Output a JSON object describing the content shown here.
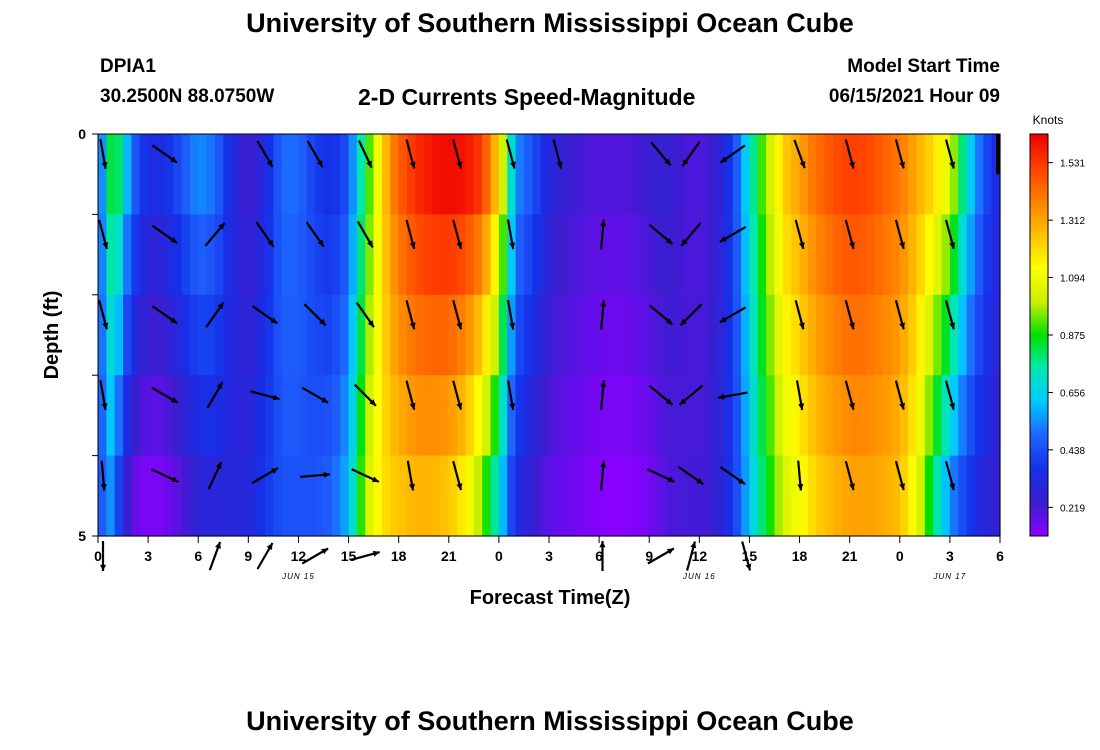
{
  "header": {
    "title": "University of Southern Mississippi Ocean Cube",
    "station": "DPIA1",
    "coords": "30.2500N  88.0750W",
    "chart_title": "2-D Currents Speed-Magnitude",
    "start_label": "Model Start Time",
    "start_value": "06/15/2021 Hour 09"
  },
  "footer": {
    "title": "University of Southern Mississippi Ocean Cube"
  },
  "chart_data": {
    "type": "heatmap",
    "title": "2-D Currents Speed-Magnitude",
    "xlabel": "Forecast Time(Z)",
    "ylabel": "Depth (ft)",
    "x_hours_range": [
      0,
      54
    ],
    "ylim": [
      0,
      5
    ],
    "y_ticks": [
      "0",
      "5"
    ],
    "y_minor_ticks": 6,
    "x_tick_labels": [
      "0",
      "3",
      "6",
      "9",
      "12",
      "15",
      "18",
      "21",
      "0",
      "3",
      "6",
      "9",
      "12",
      "15",
      "18",
      "21",
      "0",
      "3",
      "6"
    ],
    "date_labels": [
      {
        "text": "JUN 15",
        "hour": 12
      },
      {
        "text": "JUN 16",
        "hour": 36
      },
      {
        "text": "JUN 17",
        "hour": 51
      }
    ],
    "colorbar": {
      "label": "Knots",
      "min": 0.11,
      "max": 1.64,
      "ticks": [
        "1.531",
        "1.312",
        "1.094",
        "0.875",
        "0.656",
        "0.438",
        "0.219"
      ],
      "colors": [
        "#8a00ff",
        "#3a1ed0",
        "#1530e8",
        "#1e64ff",
        "#00c8ff",
        "#00e8b0",
        "#00e000",
        "#c8f000",
        "#ffff00",
        "#ffc000",
        "#ff8000",
        "#ff4000",
        "#ee0000"
      ]
    },
    "speed_profile": {
      "hours": [
        0,
        0.5,
        1,
        1.5,
        2,
        3,
        4,
        5,
        6,
        7,
        8,
        9,
        10,
        11,
        12,
        13,
        14,
        15,
        15.5,
        16,
        16.5,
        17,
        17.5,
        18,
        19,
        20,
        21,
        22,
        23,
        24,
        24.5,
        25,
        26,
        27,
        28,
        29,
        30,
        31,
        32,
        33,
        34,
        35,
        36,
        37,
        38,
        38.5,
        39,
        39.5,
        40,
        40.5,
        41,
        42,
        43,
        44,
        45,
        46,
        47,
        48,
        49,
        50,
        51,
        52,
        53,
        54
      ],
      "surface": [
        0.35,
        0.75,
        0.9,
        0.7,
        0.5,
        0.33,
        0.35,
        0.45,
        0.55,
        0.5,
        0.33,
        0.22,
        0.32,
        0.5,
        0.5,
        0.4,
        0.35,
        0.45,
        0.65,
        0.85,
        1.0,
        1.2,
        1.35,
        1.45,
        1.55,
        1.6,
        1.62,
        1.6,
        1.52,
        1.2,
        0.85,
        0.55,
        0.45,
        0.3,
        0.25,
        0.22,
        0.2,
        0.2,
        0.21,
        0.24,
        0.26,
        0.22,
        0.2,
        0.25,
        0.4,
        0.55,
        0.7,
        0.85,
        0.98,
        1.08,
        1.22,
        1.32,
        1.42,
        1.48,
        1.52,
        1.5,
        1.45,
        1.4,
        1.3,
        1.2,
        1.05,
        0.7,
        0.45,
        0.3
      ],
      "bottom": [
        0.35,
        0.6,
        0.5,
        0.32,
        0.18,
        0.13,
        0.14,
        0.2,
        0.28,
        0.3,
        0.3,
        0.3,
        0.38,
        0.45,
        0.45,
        0.45,
        0.48,
        0.6,
        0.8,
        1.0,
        1.1,
        1.18,
        1.22,
        1.25,
        1.28,
        1.28,
        1.25,
        1.15,
        0.95,
        0.7,
        0.5,
        0.35,
        0.25,
        0.18,
        0.16,
        0.14,
        0.12,
        0.11,
        0.12,
        0.14,
        0.2,
        0.22,
        0.22,
        0.25,
        0.38,
        0.5,
        0.62,
        0.74,
        0.84,
        0.93,
        1.03,
        1.12,
        1.22,
        1.28,
        1.32,
        1.32,
        1.3,
        1.26,
        1.1,
        0.8,
        0.55,
        0.4,
        0.3,
        0.25
      ]
    },
    "vectors": [
      {
        "hour": 0.3,
        "dirs": [
          170,
          165,
          165,
          170,
          175,
          180
        ]
      },
      {
        "hour": 4,
        "dirs": [
          125,
          125,
          125,
          120,
          115,
          null
        ]
      },
      {
        "hour": 7,
        "dirs": [
          null,
          40,
          35,
          30,
          25,
          20
        ]
      },
      {
        "hour": 10,
        "dirs": [
          150,
          145,
          125,
          105,
          60,
          30
        ]
      },
      {
        "hour": 13,
        "dirs": [
          150,
          145,
          135,
          120,
          85,
          60
        ]
      },
      {
        "hour": 16,
        "dirs": [
          155,
          150,
          145,
          135,
          115,
          75
        ]
      },
      {
        "hour": 18.7,
        "dirs": [
          165,
          165,
          165,
          165,
          170,
          null
        ]
      },
      {
        "hour": 21.5,
        "dirs": [
          165,
          165,
          165,
          165,
          165,
          null
        ]
      },
      {
        "hour": 24.7,
        "dirs": [
          165,
          170,
          170,
          170,
          null,
          null
        ]
      },
      {
        "hour": 27.5,
        "dirs": [
          165,
          null,
          null,
          null,
          null,
          null
        ]
      },
      {
        "hour": 30.2,
        "dirs": [
          null,
          5,
          5,
          5,
          5,
          0
        ]
      },
      {
        "hour": 33.7,
        "dirs": [
          140,
          130,
          130,
          130,
          115,
          60
        ]
      },
      {
        "hour": 35.5,
        "dirs": [
          215,
          220,
          225,
          230,
          125,
          15
        ]
      },
      {
        "hour": 38,
        "dirs": [
          235,
          240,
          240,
          260,
          125,
          null
        ]
      },
      {
        "hour": 38.8,
        "dirs": [
          null,
          null,
          null,
          null,
          null,
          165
        ]
      },
      {
        "hour": 42,
        "dirs": [
          160,
          165,
          165,
          170,
          175,
          null
        ]
      },
      {
        "hour": 45,
        "dirs": [
          165,
          165,
          165,
          165,
          165,
          null
        ]
      },
      {
        "hour": 48,
        "dirs": [
          165,
          165,
          165,
          165,
          165,
          null
        ]
      },
      {
        "hour": 51,
        "dirs": [
          165,
          165,
          165,
          165,
          165,
          null
        ]
      }
    ]
  }
}
